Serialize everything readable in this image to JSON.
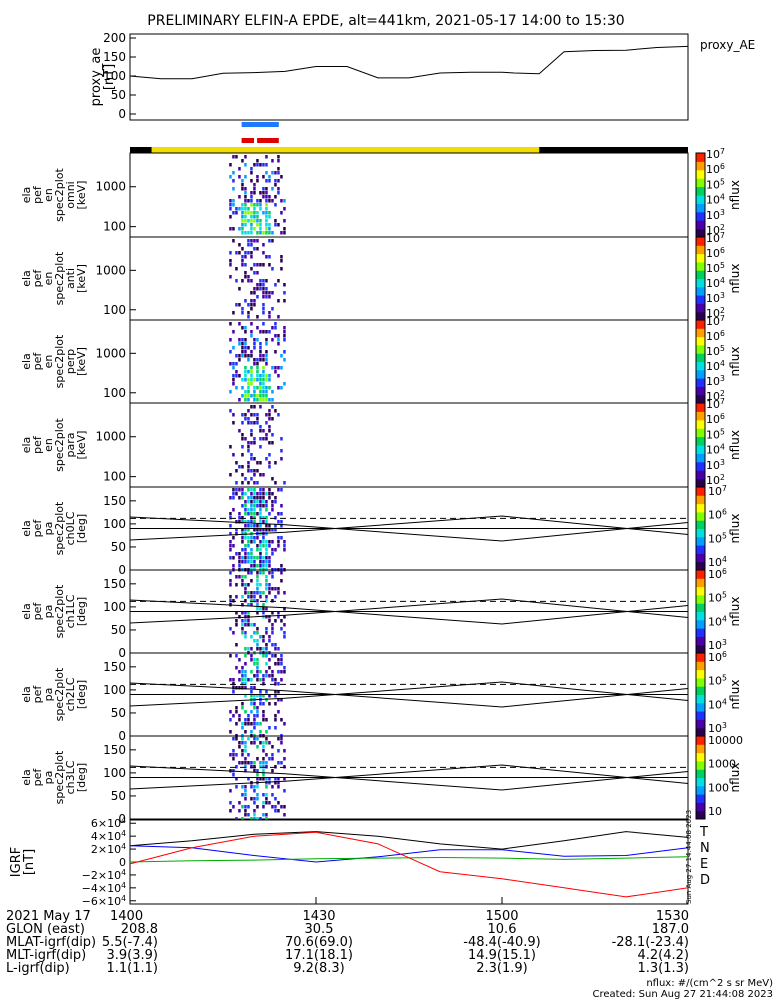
{
  "title": "PRELIMINARY ELFIN-A EPDE, alt=441km, 2021-05-17 14:00 to 15:30",
  "chart_data": [
    {
      "type": "line",
      "panel": "proxy_ae",
      "ylabel": [
        "proxy_ae",
        "[nT]"
      ],
      "legend": "proxy_AE",
      "ylim": [
        0,
        200
      ],
      "yticks": [
        "200",
        "150",
        "100",
        "50",
        "0"
      ],
      "x": [
        0,
        5,
        10,
        15,
        20,
        25,
        30,
        35,
        40,
        45,
        50,
        55,
        60,
        62,
        66,
        70,
        75,
        80,
        85,
        90
      ],
      "values": [
        100,
        93,
        93,
        107,
        109,
        112,
        125,
        125,
        95,
        95,
        108,
        110,
        110,
        108,
        106,
        164,
        167,
        168,
        175,
        178
      ]
    },
    {
      "type": "bar",
      "panel": "state-bars",
      "blue_bar_minutes": [
        18,
        24
      ],
      "red_bars_minutes": [
        [
          18,
          20
        ],
        [
          20.5,
          24
        ]
      ],
      "orbit_bar": {
        "black_until": 3.5,
        "yellow_until": 66,
        "colors": [
          "#000000",
          "#f0dc00"
        ]
      }
    },
    {
      "type": "heatmap",
      "panel": "spec-omni",
      "ylabel": [
        "ela",
        "pef",
        "en",
        "spec2plot",
        "omni",
        "[keV]"
      ],
      "yscale": "log",
      "ylim_kev": [
        55,
        7000
      ],
      "yticks": [
        "1000",
        "100"
      ],
      "colorbar": {
        "label": "nflux",
        "ticks": [
          "10^7",
          "10^6",
          "10^5",
          "10^4",
          "10^3",
          "10^2"
        ]
      },
      "active_minutes": [
        16,
        25
      ]
    },
    {
      "type": "heatmap",
      "panel": "spec-anti",
      "ylabel": [
        "ela",
        "pef",
        "en",
        "spec2plot",
        "anti",
        "[keV]"
      ],
      "yscale": "log",
      "ylim_kev": [
        55,
        7000
      ],
      "yticks": [
        "1000",
        "100"
      ],
      "colorbar": {
        "label": "nflux",
        "ticks": [
          "10^7",
          "10^6",
          "10^5",
          "10^4",
          "10^3",
          "10^2"
        ]
      },
      "active_minutes": [
        16,
        25
      ]
    },
    {
      "type": "heatmap",
      "panel": "spec-perp",
      "ylabel": [
        "ela",
        "pef",
        "en",
        "spec2plot",
        "perp",
        "[keV]"
      ],
      "yscale": "log",
      "ylim_kev": [
        55,
        7000
      ],
      "yticks": [
        "1000",
        "100"
      ],
      "colorbar": {
        "label": "nflux",
        "ticks": [
          "10^7",
          "10^6",
          "10^5",
          "10^4",
          "10^3",
          "10^2"
        ]
      },
      "active_minutes": [
        16,
        25
      ]
    },
    {
      "type": "heatmap",
      "panel": "spec-para",
      "ylabel": [
        "ela",
        "pef",
        "en",
        "spec2plot",
        "para",
        "[keV]"
      ],
      "yscale": "log",
      "ylim_kev": [
        55,
        7000
      ],
      "yticks": [
        "1000",
        "100"
      ],
      "colorbar": {
        "label": "nflux",
        "ticks": [
          "10^7",
          "10^6",
          "10^5",
          "10^4",
          "10^3",
          "10^2"
        ]
      },
      "active_minutes": [
        16,
        25
      ]
    },
    {
      "type": "heatmap",
      "panel": "pa-ch0",
      "ylabel": [
        "ela",
        "pef",
        "pa",
        "spec2plot",
        "ch0LC",
        "[deg]"
      ],
      "ylim": [
        0,
        180
      ],
      "yticks": [
        "150",
        "100",
        "50",
        "0"
      ],
      "colorbar": {
        "label": "nflux",
        "ticks": [
          "10^7",
          "10^6",
          "10^5",
          "10^4"
        ]
      },
      "losscone_deg": [
        [
          0,
          65
        ],
        [
          25,
          82
        ],
        [
          60,
          117
        ],
        [
          90,
          77
        ]
      ],
      "antilosscone_deg": [
        [
          0,
          115
        ],
        [
          25,
          98
        ],
        [
          60,
          63
        ],
        [
          90,
          103
        ]
      ],
      "dashed_deg": 112,
      "solid_deg": 90
    },
    {
      "type": "heatmap",
      "panel": "pa-ch1",
      "ylabel": [
        "ela",
        "pef",
        "pa",
        "spec2plot",
        "ch1LC",
        "[deg]"
      ],
      "ylim": [
        0,
        180
      ],
      "yticks": [
        "150",
        "100",
        "50",
        "0"
      ],
      "colorbar": {
        "label": "nflux",
        "ticks": [
          "10^6",
          "10^5",
          "10^4",
          "10^3"
        ]
      },
      "losscone_deg": [
        [
          0,
          65
        ],
        [
          25,
          82
        ],
        [
          60,
          117
        ],
        [
          90,
          77
        ]
      ],
      "antilosscone_deg": [
        [
          0,
          115
        ],
        [
          25,
          98
        ],
        [
          60,
          63
        ],
        [
          90,
          103
        ]
      ],
      "dashed_deg": 112,
      "solid_deg": 90
    },
    {
      "type": "heatmap",
      "panel": "pa-ch2",
      "ylabel": [
        "ela",
        "pef",
        "pa",
        "spec2plot",
        "ch2LC",
        "[deg]"
      ],
      "ylim": [
        0,
        180
      ],
      "yticks": [
        "150",
        "100",
        "50",
        "0"
      ],
      "colorbar": {
        "label": "nflux",
        "ticks": [
          "10^6",
          "10^5",
          "10^4",
          "10^3"
        ]
      },
      "losscone_deg": [
        [
          0,
          65
        ],
        [
          25,
          82
        ],
        [
          60,
          117
        ],
        [
          90,
          77
        ]
      ],
      "antilosscone_deg": [
        [
          0,
          115
        ],
        [
          25,
          98
        ],
        [
          60,
          63
        ],
        [
          90,
          103
        ]
      ],
      "dashed_deg": 112,
      "solid_deg": 90
    },
    {
      "type": "heatmap",
      "panel": "pa-ch3",
      "ylabel": [
        "ela",
        "pef",
        "pa",
        "spec2plot",
        "ch3LC",
        "[deg]"
      ],
      "ylim": [
        0,
        180
      ],
      "yticks": [
        "150",
        "100",
        "50",
        "0"
      ],
      "colorbar": {
        "label": "nflux",
        "ticks": [
          "10000",
          "1000",
          "100",
          "10"
        ]
      },
      "losscone_deg": [
        [
          0,
          65
        ],
        [
          25,
          82
        ],
        [
          60,
          117
        ],
        [
          90,
          77
        ]
      ],
      "antilosscone_deg": [
        [
          0,
          115
        ],
        [
          25,
          98
        ],
        [
          60,
          63
        ],
        [
          90,
          103
        ]
      ],
      "dashed_deg": 112,
      "solid_deg": 90
    },
    {
      "type": "line",
      "panel": "igrf",
      "ylabel": [
        "IGRF",
        "[nT]"
      ],
      "ylim": [
        -65000,
        65000
      ],
      "yticks": [
        "6×10^4",
        "4×10^4",
        "2×10^4",
        "0",
        "−2×10^4",
        "−4×10^4",
        "−6×10^4"
      ],
      "series": [
        {
          "name": "T",
          "color": "#000000",
          "x": [
            0,
            10,
            20,
            30,
            40,
            50,
            60,
            70,
            80,
            90
          ],
          "values": [
            25000,
            33000,
            43000,
            47000,
            40000,
            28000,
            20000,
            33000,
            47000,
            38000
          ]
        },
        {
          "name": "N",
          "color": "#0000ff",
          "x": [
            0,
            10,
            20,
            30,
            40,
            50,
            60,
            70,
            80,
            90
          ],
          "values": [
            25000,
            22000,
            10000,
            0,
            8000,
            19000,
            19000,
            9000,
            10000,
            22000
          ]
        },
        {
          "name": "E",
          "color": "#00aa00",
          "x": [
            0,
            10,
            20,
            30,
            40,
            50,
            60,
            70,
            80,
            90
          ],
          "values": [
            0,
            2000,
            3000,
            5000,
            6000,
            7000,
            6000,
            4000,
            6000,
            8000
          ]
        },
        {
          "name": "D",
          "color": "#ff0000",
          "x": [
            0,
            10,
            20,
            30,
            40,
            50,
            60,
            70,
            80,
            90
          ],
          "values": [
            -3000,
            22000,
            40000,
            46000,
            28000,
            -15000,
            -26000,
            -40000,
            -54000,
            -40000
          ]
        }
      ]
    }
  ],
  "xaxis": {
    "tick_minutes": [
      0,
      30,
      60,
      90
    ],
    "tick_labels": [
      "1400",
      "1430",
      "1500",
      "1530"
    ],
    "rows": [
      {
        "label": "2021 May 17",
        "values": [
          "1400",
          "1430",
          "1500",
          "1530"
        ]
      },
      {
        "label": "GLON (east)",
        "values": [
          "208.8",
          "30.5",
          "10.6",
          "187.0"
        ]
      },
      {
        "label": "MLAT-igrf(dip)",
        "values": [
          "5.5(-7.4)",
          "70.6(69.0)",
          "-48.4(-40.9)",
          "-28.1(-23.4)"
        ]
      },
      {
        "label": "MLT-igrf(dip)",
        "values": [
          "3.9(3.9)",
          "17.1(18.1)",
          "14.9(15.1)",
          "4.2(4.2)"
        ]
      },
      {
        "label": "L-igrf(dip)",
        "values": [
          "1.1(1.1)",
          "9.2(8.3)",
          "2.3(1.9)",
          "1.3(1.3)"
        ]
      }
    ]
  },
  "footer": {
    "units": "nflux: #/(cm^2 s sr MeV)",
    "created": "Created: Sun Aug 27 21:44:08 2023",
    "side_stamp": "Sun Aug 27 14:44:08 2023"
  }
}
